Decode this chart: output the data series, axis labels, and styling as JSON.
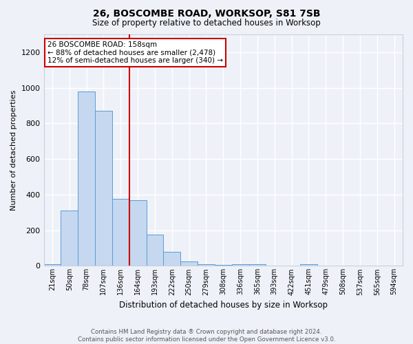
{
  "title": "26, BOSCOMBE ROAD, WORKSOP, S81 7SB",
  "subtitle": "Size of property relative to detached houses in Worksop",
  "xlabel": "Distribution of detached houses by size in Worksop",
  "ylabel": "Number of detached properties",
  "bin_labels": [
    "21sqm",
    "50sqm",
    "78sqm",
    "107sqm",
    "136sqm",
    "164sqm",
    "193sqm",
    "222sqm",
    "250sqm",
    "279sqm",
    "308sqm",
    "336sqm",
    "365sqm",
    "393sqm",
    "422sqm",
    "451sqm",
    "479sqm",
    "508sqm",
    "537sqm",
    "565sqm",
    "594sqm"
  ],
  "bar_heights": [
    10,
    310,
    980,
    870,
    375,
    370,
    175,
    80,
    25,
    10,
    5,
    10,
    10,
    0,
    0,
    10,
    0,
    0,
    0,
    0,
    0
  ],
  "bar_color": "#c5d8f0",
  "bar_edge_color": "#5b9bd5",
  "vline_x": 4.5,
  "vline_color": "#cc0000",
  "ylim": [
    0,
    1300
  ],
  "yticks": [
    0,
    200,
    400,
    600,
    800,
    1000,
    1200
  ],
  "annotation_text": "26 BOSCOMBE ROAD: 158sqm\n← 88% of detached houses are smaller (2,478)\n12% of semi-detached houses are larger (340) →",
  "annotation_box_color": "#ffffff",
  "annotation_box_edge": "#cc0000",
  "footer_text": "Contains HM Land Registry data ® Crown copyright and database right 2024.\nContains public sector information licensed under the Open Government Licence v3.0.",
  "bg_color": "#eef2f8",
  "plot_bg_color": "#eef2f8",
  "grid_color": "#ffffff",
  "spine_color": "#c8d0dc"
}
